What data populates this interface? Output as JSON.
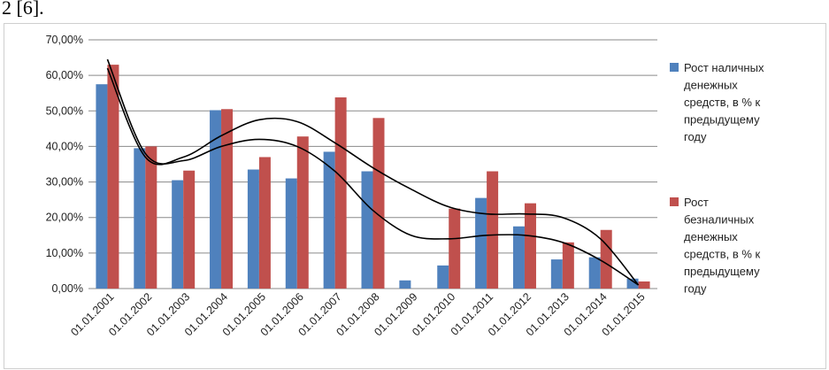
{
  "caption_fragment": "2 [6].",
  "chart_data": {
    "type": "bar",
    "title": "",
    "xlabel": "",
    "ylabel": "",
    "ylim": [
      0,
      70
    ],
    "y_ticks": [
      "0,00%",
      "10,00%",
      "20,00%",
      "30,00%",
      "40,00%",
      "50,00%",
      "60,00%",
      "70,00%"
    ],
    "y_tick_values": [
      0,
      10,
      20,
      30,
      40,
      50,
      60,
      70
    ],
    "grid": true,
    "legend_position": "right",
    "categories": [
      "01.01.2001",
      "01.01.2002",
      "01.01.2003",
      "01.01.2004",
      "01.01.2005",
      "01.01.2006",
      "01.01.2007",
      "01.01.2008",
      "01.01.2009",
      "01.01.2010",
      "01.01.2011",
      "01.01.2012",
      "01.01.2013",
      "01.01.2014",
      "01.01.2015"
    ],
    "series": [
      {
        "name": "Рост наличных денежных средств, в % к предыдущему году",
        "legend_lines": [
          "Рост наличных",
          "денежных",
          "средств, в % к",
          "предыдущему",
          "году"
        ],
        "color": "#4f81bd",
        "values": [
          57.5,
          39.5,
          30.5,
          50.2,
          33.5,
          31,
          38.5,
          33,
          2.3,
          6.5,
          25.5,
          17.5,
          8.2,
          8.8,
          2.8
        ]
      },
      {
        "name": "Рост безналичных денежных средств, в % к предыдущему году",
        "legend_lines": [
          "Рост",
          "безналичных",
          "денежных",
          "средств, в % к",
          "предыдущему",
          "году"
        ],
        "color": "#c0504d",
        "values": [
          63,
          40,
          33.2,
          50.5,
          37,
          42.8,
          53.8,
          48,
          0,
          22.5,
          33,
          24,
          13,
          16.5,
          2
        ]
      }
    ],
    "trendlines": [
      {
        "series": 0,
        "type": "polynomial",
        "color": "#000000",
        "points": [
          64.5,
          38,
          36,
          40,
          42,
          40,
          33,
          22,
          15,
          14,
          15,
          15,
          13,
          8,
          1
        ]
      },
      {
        "series": 1,
        "type": "polynomial",
        "color": "#000000",
        "points": [
          62,
          37,
          37,
          43,
          47.5,
          47,
          41,
          34,
          28,
          23,
          21,
          21,
          20,
          14,
          1
        ]
      }
    ]
  }
}
